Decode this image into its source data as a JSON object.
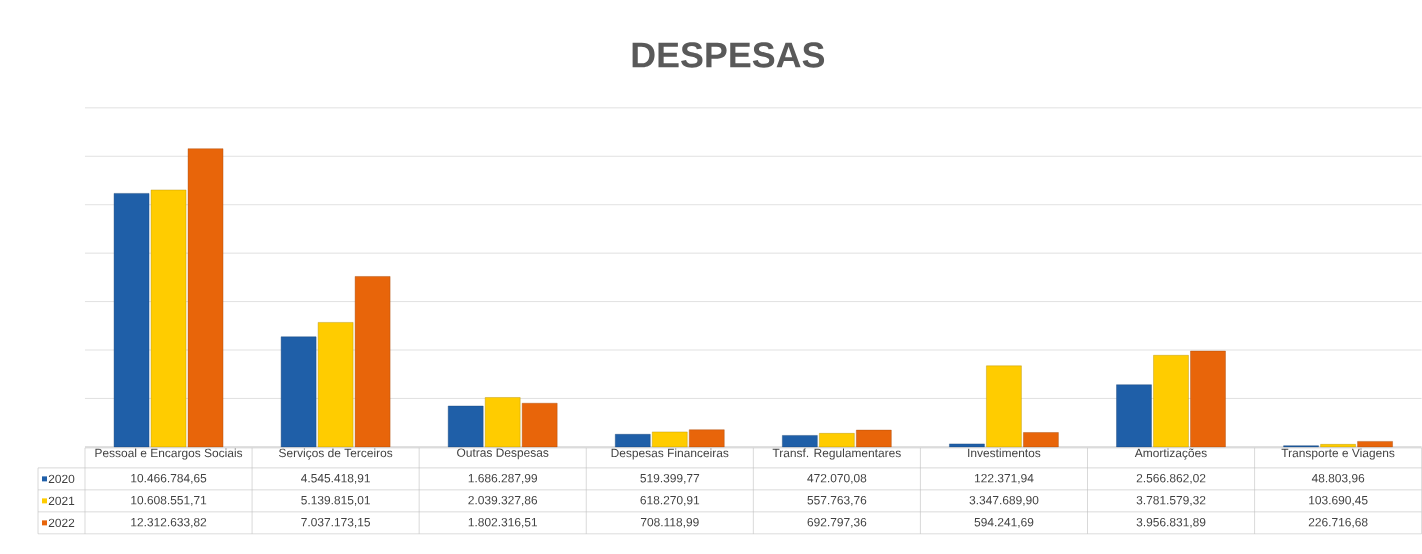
{
  "chart_data": {
    "type": "bar",
    "title": "DESPESAS",
    "categories": [
      "Pessoal e Encargos Sociais",
      "Serviços de Terceiros",
      "Outras Despesas",
      "Despesas Financeiras",
      "Transf. Regulamentares",
      "Investimentos",
      "Amortizações",
      "Transporte e Viagens"
    ],
    "series": [
      {
        "name": "2020",
        "color": "#1f5fa8",
        "values": [
          10466784.65,
          4545418.91,
          1686287.99,
          519399.77,
          472070.08,
          122371.94,
          2566862.02,
          48803.96
        ],
        "value_labels": [
          "10.466.784,65",
          "4.545.418,91",
          "1.686.287,99",
          "519.399,77",
          "472.070,08",
          "122.371,94",
          "2.566.862,02",
          "48.803,96"
        ]
      },
      {
        "name": "2021",
        "color": "#ffcc00",
        "values": [
          10608551.71,
          5139815.01,
          2039327.86,
          618270.91,
          557763.76,
          3347689.9,
          3781579.32,
          103690.45
        ],
        "value_labels": [
          "10.608.551,71",
          "5.139.815,01",
          "2.039.327,86",
          "618.270,91",
          "557.763,76",
          "3.347.689,90",
          "3.781.579,32",
          "103.690,45"
        ]
      },
      {
        "name": "2022",
        "color": "#e8650a",
        "values": [
          12312633.82,
          7037173.15,
          1802316.51,
          708118.99,
          692797.36,
          594241.69,
          3956831.89,
          226716.68
        ],
        "value_labels": [
          "12.312.633,82",
          "7.037.173,15",
          "1.802.316,51",
          "708.118,99",
          "692.797,36",
          "594.241,69",
          "3.956.831,89",
          "226.716,68"
        ]
      }
    ],
    "grid": "y",
    "legend": "bottom",
    "tick_labels": "x"
  }
}
